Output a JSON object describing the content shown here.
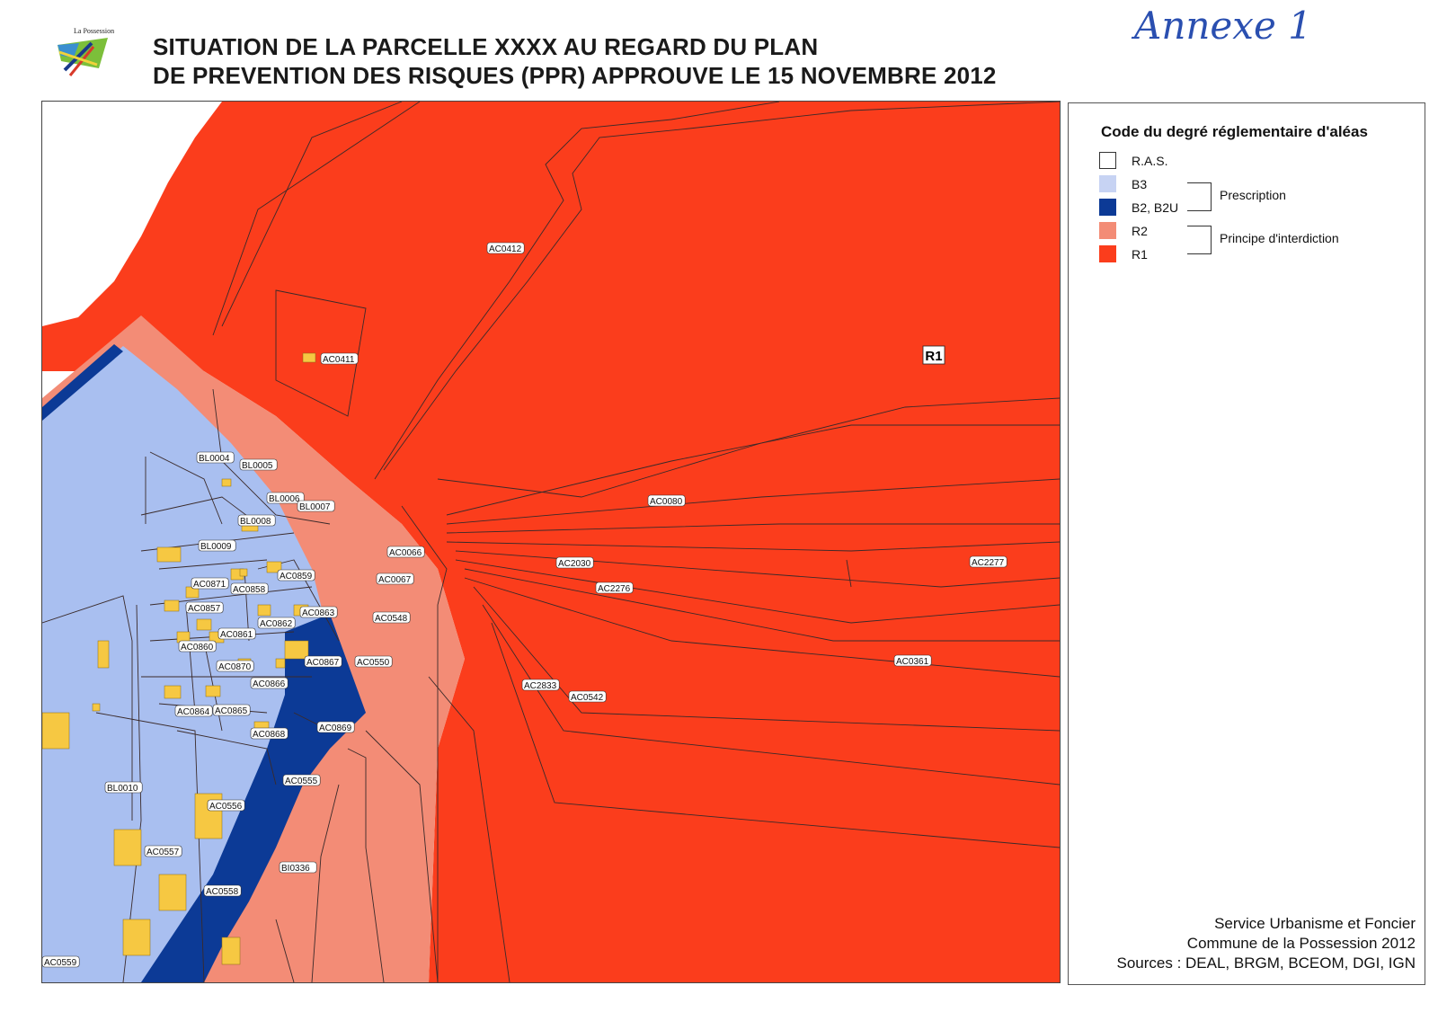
{
  "header": {
    "logo_text": "La Possession",
    "title_line1": "SITUATION DE LA PARCELLE XXXX AU REGARD DU PLAN",
    "title_line2": "DE PREVENTION DES RISQUES (PPR) APPROUVE LE 15 NOVEMBRE 2012",
    "annex": "Annexe 1"
  },
  "legend": {
    "title": "Code du degré réglementaire d'aléas",
    "items": [
      {
        "label": "R.A.S.",
        "color": "#ffffff"
      },
      {
        "label": "B3",
        "color": "#c7d3f3"
      },
      {
        "label": "B2, B2U",
        "color": "#0c3a96"
      },
      {
        "label": "R2",
        "color": "#f38c76"
      },
      {
        "label": "R1",
        "color": "#fb3d1c"
      }
    ],
    "group_prescription": "Prescription",
    "group_interdiction": "Principe d'interdiction"
  },
  "credits": {
    "line1": "Service Urbanisme et Foncier",
    "line2": "Commune de la Possession 2012",
    "line3": "Sources : DEAL, BRGM, BCEOM, DGI, IGN"
  },
  "map": {
    "zone_label": "R1",
    "colors": {
      "r1": "#fb3d1c",
      "r2": "#f38c76",
      "b2": "#0c3a96",
      "b3": "#a9bff0",
      "building": "#f6c842",
      "line": "#3a2a2a"
    },
    "parcels": [
      "AC0412",
      "AC0411",
      "BL0004",
      "BL0005",
      "BL0006",
      "BL0007",
      "BL0008",
      "BL0009",
      "AC0066",
      "AC0067",
      "AC0871",
      "AC0858",
      "AC0859",
      "AC0857",
      "AC0863",
      "AC0862",
      "AC0548",
      "AC0861",
      "AC0860",
      "AC0867",
      "AC0550",
      "AC0870",
      "AC0866",
      "AC0864",
      "AC0865",
      "AC0868",
      "AC0869",
      "BL0010",
      "AC0555",
      "AC0556",
      "AC0557",
      "BI0336",
      "AC0558",
      "AC0559",
      "AC0080",
      "AC2030",
      "AC2276",
      "AC2277",
      "AC0361",
      "AC2833",
      "AC0542"
    ]
  }
}
